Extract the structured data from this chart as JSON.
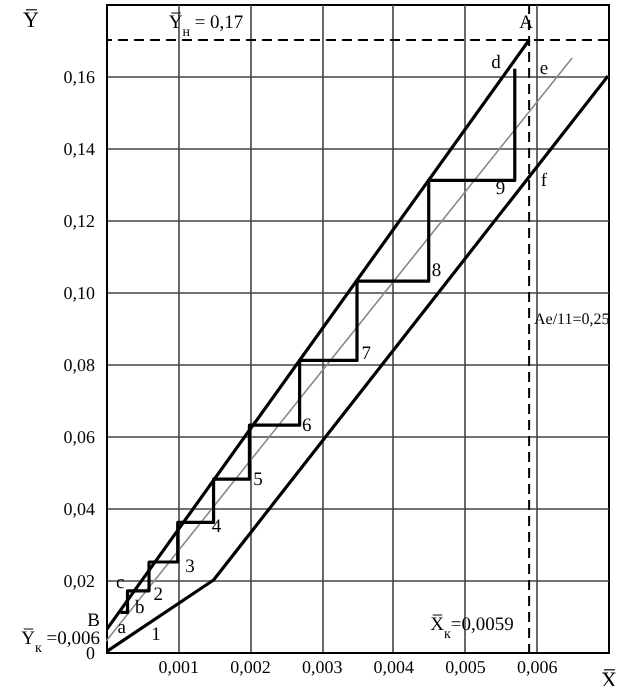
{
  "chart_data": {
    "type": "line",
    "xlabel": "X̅",
    "ylabel": "Y̅",
    "xlim": [
      0,
      0.007
    ],
    "ylim": [
      0,
      0.18
    ],
    "xticks": [
      {
        "value": 0.001,
        "label": "0,001"
      },
      {
        "value": 0.002,
        "label": "0,002"
      },
      {
        "value": 0.003,
        "label": "0,003"
      },
      {
        "value": 0.004,
        "label": "0,004"
      },
      {
        "value": 0.005,
        "label": "0,005"
      },
      {
        "value": 0.006,
        "label": "0,006"
      }
    ],
    "yticks": [
      0,
      {
        "value": 0.02,
        "label": "0,02"
      },
      {
        "value": 0.04,
        "label": "0,04"
      },
      {
        "value": 0.06,
        "label": "0,06"
      },
      {
        "value": 0.08,
        "label": "0,08"
      },
      {
        "value": 0.1,
        "label": "0,10"
      },
      {
        "value": 0.12,
        "label": "0,12"
      },
      {
        "value": 0.14,
        "label": "0,14"
      },
      {
        "value": 0.16,
        "label": "0,16"
      }
    ],
    "grid": true,
    "marker": "none",
    "line_style": "solid",
    "series": [
      {
        "color": "#000000",
        "x": [
          0,
          0.0059
        ],
        "values": [
          0.006,
          0.17
        ]
      },
      {
        "color": "#000000",
        "x": [
          0,
          0.0015,
          0.007
        ],
        "values": [
          0,
          0.02,
          0.16
        ]
      },
      {
        "color": "#888888",
        "x": [
          0,
          0.0065
        ],
        "values": [
          0.003,
          0.165
        ]
      },
      {
        "color": "#000000",
        "x": [
          0.0002,
          0.0003,
          0.0003,
          0.0006,
          0.0006,
          0.001,
          0.001,
          0.0015,
          0.0015,
          0.002,
          0.002,
          0.0027,
          0.0027,
          0.0035,
          0.0035,
          0.0045,
          0.0045,
          0.0057,
          0.0057
        ],
        "values": [
          0.011,
          0.011,
          0.017,
          0.017,
          0.025,
          0.025,
          0.036,
          0.036,
          0.048,
          0.048,
          0.063,
          0.063,
          0.081,
          0.081,
          0.103,
          0.103,
          0.131,
          0.131,
          0.162
        ]
      }
    ],
    "ref_lines": [
      {
        "axis": "y",
        "value": 0.17,
        "color": "#000000",
        "line_style": "dashed"
      },
      {
        "axis": "x",
        "value": 0.0059,
        "color": "#000000",
        "line_style": "dashed"
      }
    ],
    "annotations": [
      "Y̅$_{н}$ = 0,17",
      {
        "text": "Y̅$_{к}$ =0,006",
        "x": 0,
        "y": 0.004
      },
      {
        "text": "B",
        "x": 0,
        "y": 0.009
      },
      "X̅$_{к}$=0,0059",
      "Ae/11=0,25",
      "A",
      "d",
      "e",
      "f",
      {
        "text": "a",
        "x": 0.00022,
        "y": 0.007
      },
      {
        "text": "b",
        "x": 0.00047,
        "y": 0.0125
      },
      {
        "text": "c",
        "x": 0.0002,
        "y": 0.0195
      },
      "1",
      {
        "text": "2",
        "x": 0.00073,
        "y": 0.016
      },
      "3",
      {
        "text": "4",
        "x": 0.00154,
        "y": 0.035
      },
      {
        "text": "5",
        "x": 0.00212,
        "y": 0.048
      },
      {
        "text": "6",
        "x": 0.0028,
        "y": 0.063
      },
      {
        "text": "7",
        "x": 0.00363,
        "y": 0.083
      },
      {
        "text": "8",
        "x": 0.00461,
        "y": 0.106
      },
      {
        "text": "9",
        "x": 0.0055,
        "y": 0.129
      }
    ]
  }
}
